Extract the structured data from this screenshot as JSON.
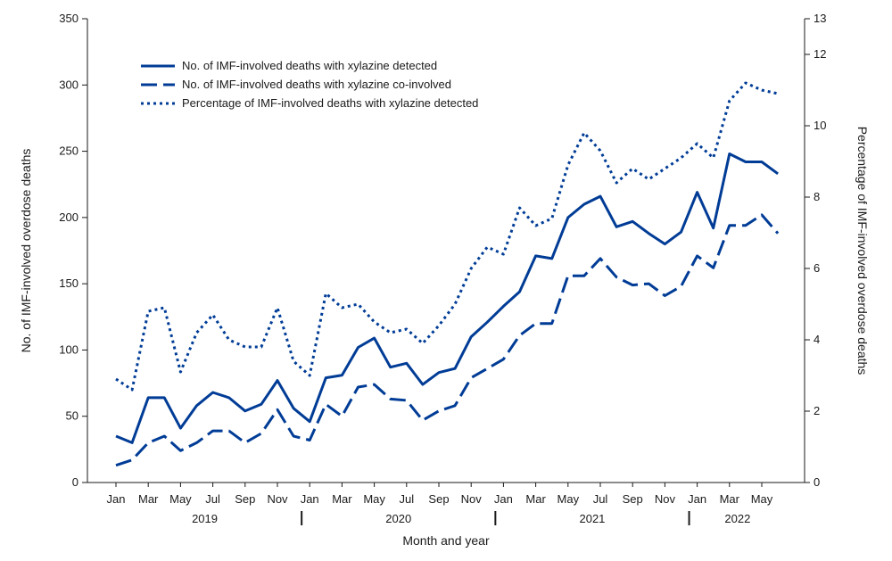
{
  "chart_data": {
    "type": "line",
    "xlabel": "Month and year",
    "ylabel_left": "No. of IMF-involved overdose deaths",
    "ylabel_right": "Percentage of IMF-involved overdose deaths",
    "ylim_left": [
      0,
      350
    ],
    "ylim_right": [
      0,
      13
    ],
    "yticks_left": [
      0,
      50,
      100,
      150,
      200,
      250,
      300,
      350
    ],
    "yticks_right": [
      0,
      2,
      4,
      6,
      8,
      10,
      12,
      13
    ],
    "month_labels": [
      "Jan",
      "Mar",
      "May",
      "Jul",
      "Sep",
      "Nov",
      "Jan",
      "Mar",
      "May",
      "Jul",
      "Sep",
      "Nov",
      "Jan",
      "Mar",
      "May",
      "Jul",
      "Sep",
      "Nov",
      "Jan",
      "Mar",
      "May"
    ],
    "month_label_indices": [
      0,
      2,
      4,
      6,
      8,
      10,
      12,
      14,
      16,
      18,
      20,
      22,
      24,
      26,
      28,
      30,
      32,
      34,
      36,
      38,
      40
    ],
    "years": [
      {
        "label": "2019",
        "start": 0,
        "end": 11
      },
      {
        "label": "2020",
        "start": 12,
        "end": 23
      },
      {
        "label": "2021",
        "start": 24,
        "end": 35
      },
      {
        "label": "2022",
        "start": 36,
        "end": 41
      }
    ],
    "year_separators": [
      12,
      24,
      36
    ],
    "series": [
      {
        "name": "No. of IMF-involved deaths with xylazine detected",
        "axis": "left",
        "style": "solid",
        "color": "#003c96",
        "values": [
          35,
          30,
          64,
          64,
          41,
          58,
          68,
          64,
          54,
          59,
          77,
          56,
          46,
          79,
          81,
          102,
          109,
          87,
          90,
          74,
          83,
          86,
          110,
          121,
          133,
          144,
          171,
          169,
          200,
          210,
          216,
          193,
          197,
          188,
          180,
          189,
          219,
          192,
          248,
          242,
          242,
          233
        ]
      },
      {
        "name": "No. of IMF-involved deaths with xylazine co-involved",
        "axis": "left",
        "style": "dashed",
        "color": "#003c96",
        "values": [
          13,
          17,
          30,
          35,
          24,
          30,
          39,
          39,
          30,
          37,
          55,
          35,
          32,
          59,
          50,
          72,
          74,
          63,
          62,
          47,
          54,
          58,
          79,
          86,
          93,
          111,
          120,
          120,
          156,
          156,
          169,
          155,
          149,
          150,
          141,
          148,
          171,
          162,
          194,
          194,
          202,
          188
        ]
      },
      {
        "name": "Percentage of IMF-involved deaths with xylazine detected",
        "axis": "right",
        "style": "dotted",
        "color": "#003c96",
        "values": [
          2.9,
          2.6,
          4.8,
          4.9,
          3.1,
          4.2,
          4.7,
          4.0,
          3.8,
          3.8,
          4.9,
          3.4,
          3.0,
          5.3,
          4.9,
          5.0,
          4.5,
          4.2,
          4.3,
          3.9,
          4.4,
          5.0,
          6.0,
          6.6,
          6.4,
          7.7,
          7.2,
          7.4,
          8.9,
          9.8,
          9.3,
          8.4,
          8.8,
          8.5,
          8.8,
          9.1,
          9.5,
          9.1,
          10.7,
          11.2,
          11.0,
          10.9
        ]
      }
    ]
  }
}
